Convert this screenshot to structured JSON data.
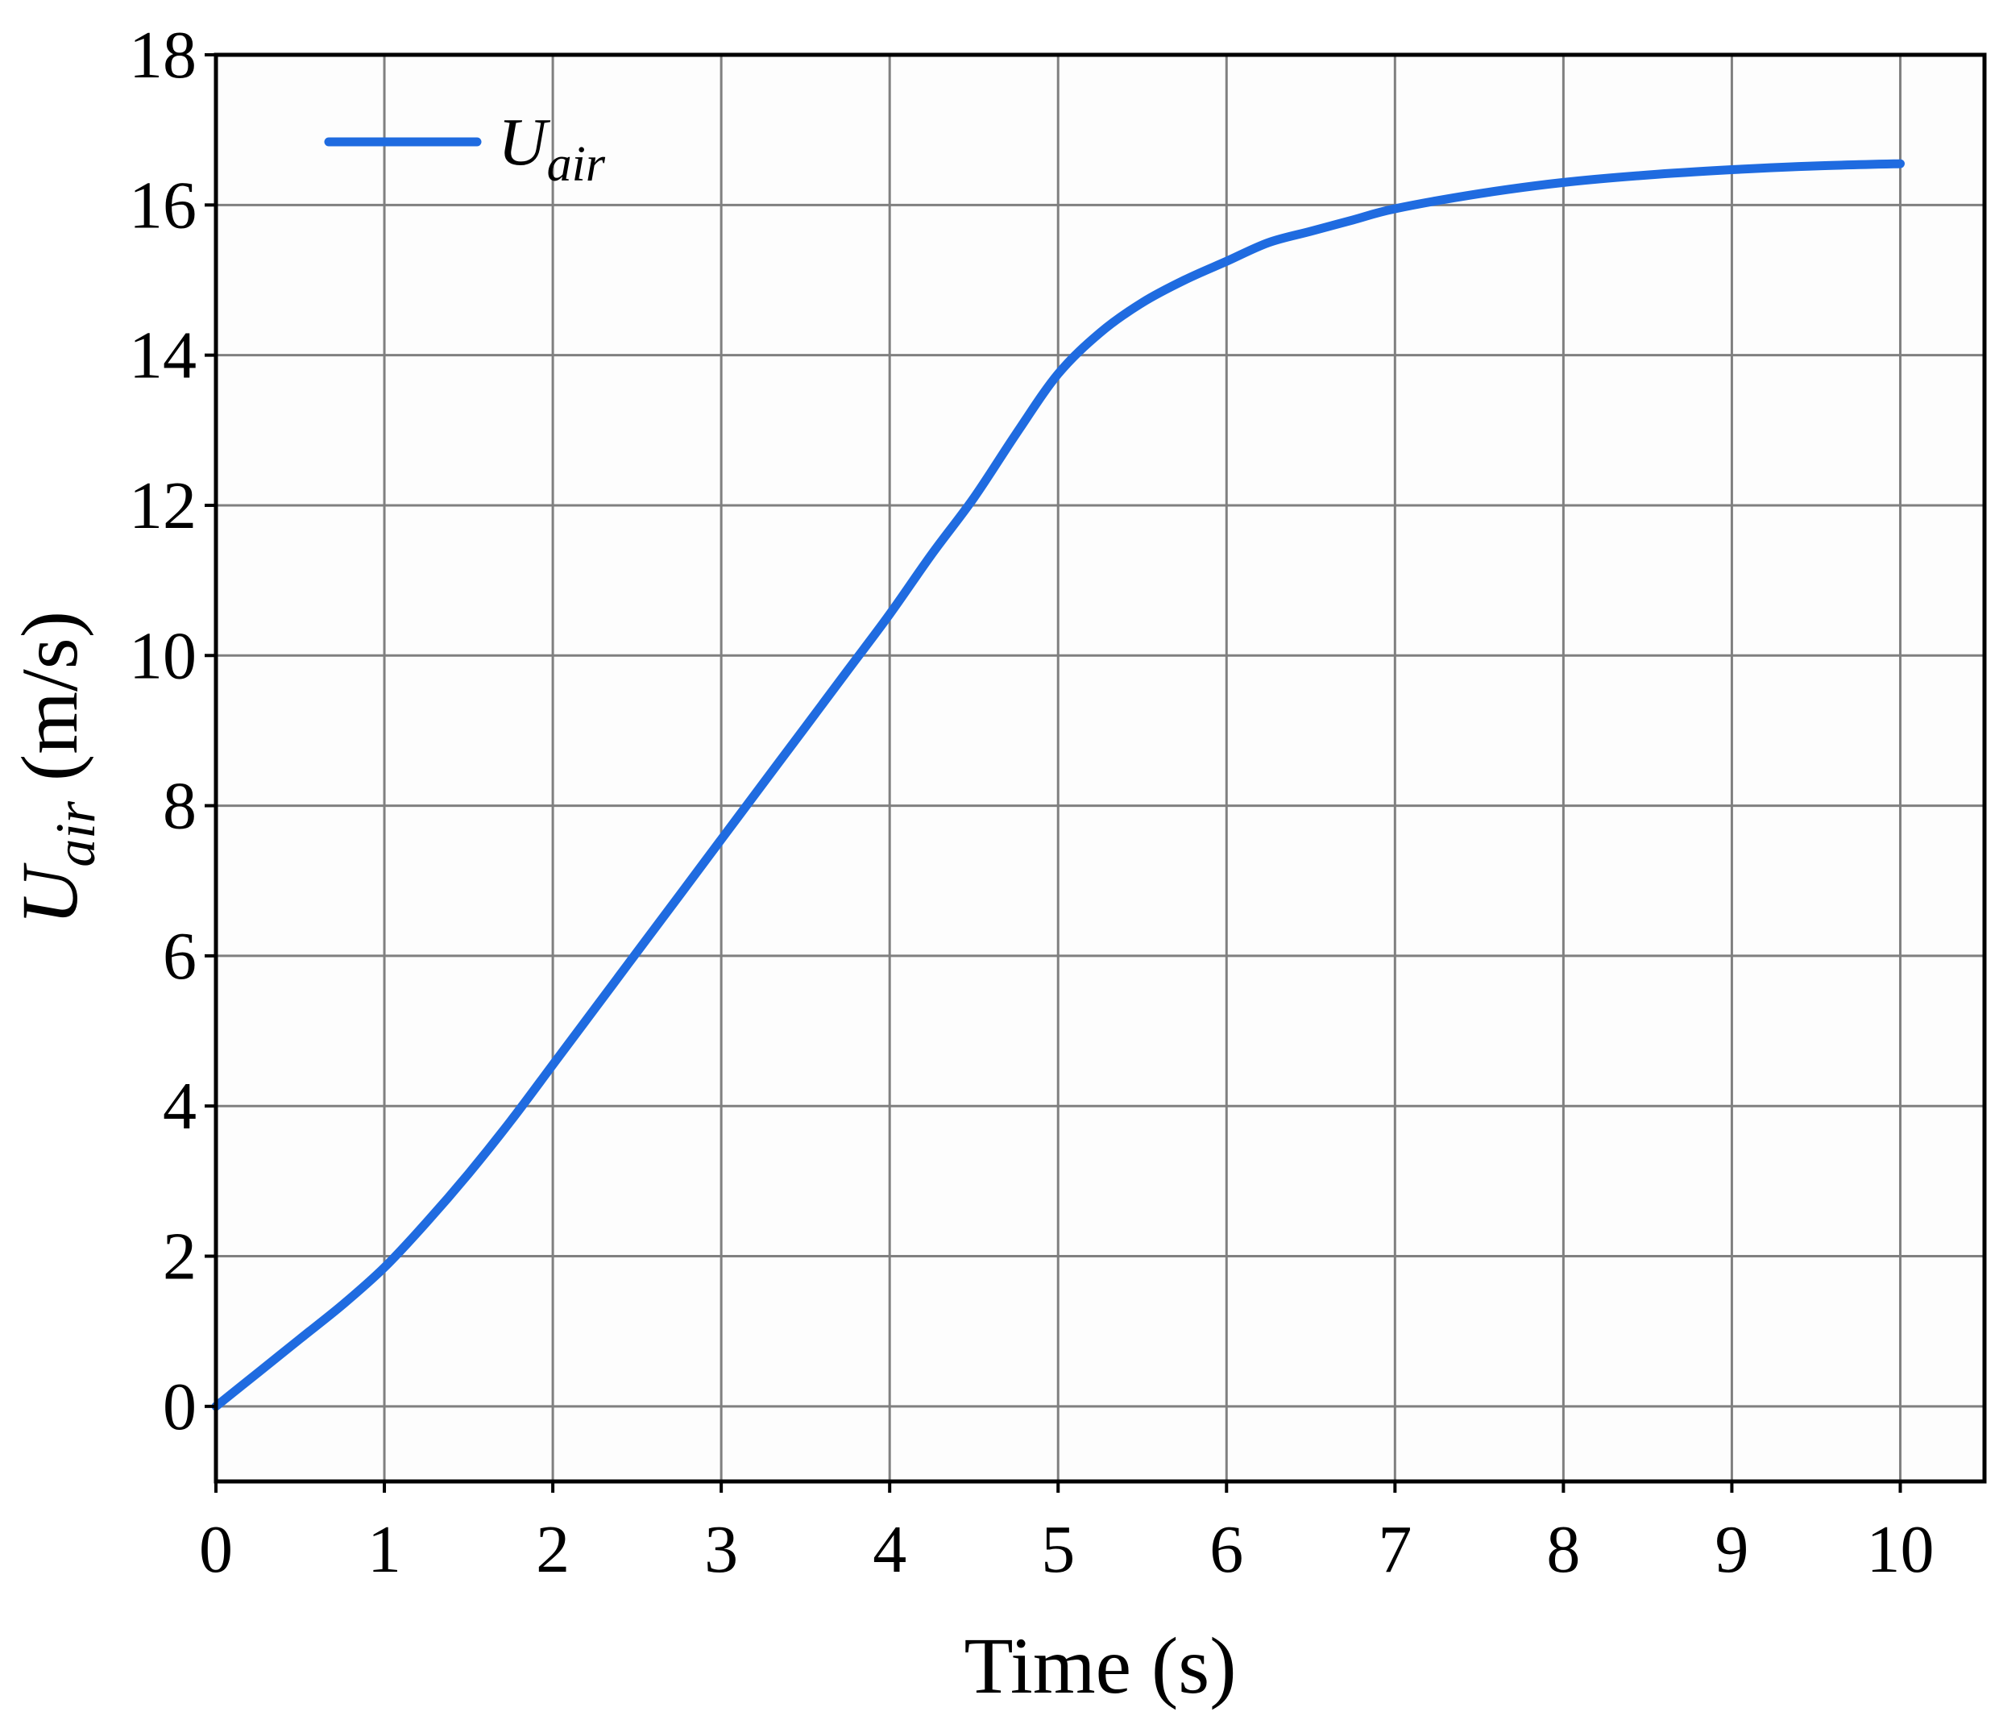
{
  "chart_data": {
    "type": "line",
    "xlabel": "Time (s)",
    "ylabel": {
      "main": "U",
      "subscript": "air",
      "suffix": " (m/s)"
    },
    "xlim": [
      0,
      10.5
    ],
    "ylim": [
      -1,
      18
    ],
    "xticks": [
      0,
      1,
      2,
      3,
      4,
      5,
      6,
      7,
      8,
      9,
      10
    ],
    "yticks": [
      0,
      2,
      4,
      6,
      8,
      10,
      12,
      14,
      16,
      18
    ],
    "grid": true,
    "legend_position": "top-left",
    "colors": {
      "line": "#1f6be0",
      "grid": "#808080",
      "axes": "#000000",
      "plot_background": "#fdfdfd"
    },
    "series": [
      {
        "name": {
          "main": "U",
          "subscript": "air"
        },
        "x": [
          0,
          0.25,
          0.5,
          0.75,
          1.0,
          1.25,
          1.5,
          1.75,
          2.0,
          2.25,
          2.5,
          2.75,
          3.0,
          3.25,
          3.5,
          3.75,
          4.0,
          4.25,
          4.5,
          4.75,
          5.0,
          5.25,
          5.5,
          5.75,
          6.0,
          6.25,
          6.5,
          6.75,
          7.0,
          7.5,
          8.0,
          8.5,
          9.0,
          9.5,
          10.0
        ],
        "y": [
          0.0,
          0.45,
          0.9,
          1.35,
          1.85,
          2.45,
          3.1,
          3.8,
          4.55,
          5.3,
          6.05,
          6.8,
          7.55,
          8.3,
          9.05,
          9.8,
          10.55,
          11.35,
          12.1,
          12.95,
          13.75,
          14.3,
          14.7,
          15.0,
          15.25,
          15.5,
          15.65,
          15.8,
          15.95,
          16.15,
          16.3,
          16.4,
          16.47,
          16.52,
          16.55
        ]
      }
    ]
  }
}
